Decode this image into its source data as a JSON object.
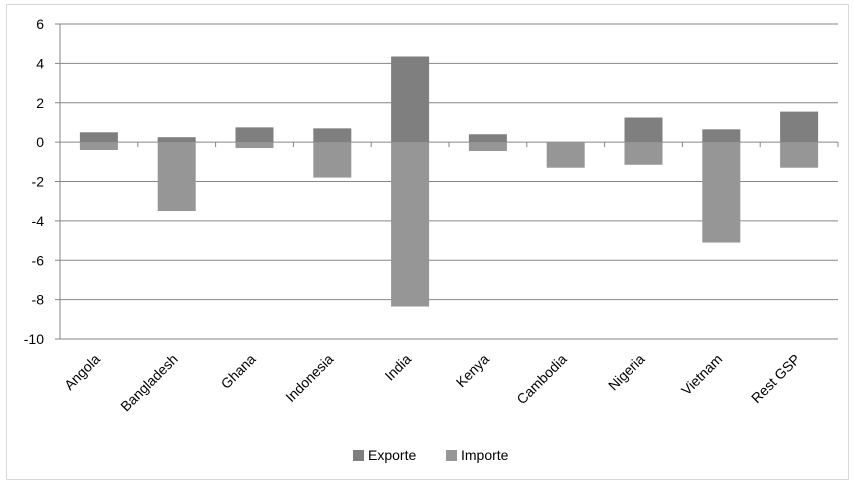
{
  "chart_data": {
    "type": "bar",
    "stacked": true,
    "categories": [
      "Angola",
      "Bangladesh",
      "Ghana",
      "Indonesia",
      "India",
      "Kenya",
      "Cambodia",
      "Nigeria",
      "Vietnam",
      "Rest GSP"
    ],
    "series": [
      {
        "name": "Exporte",
        "color": "#7f7f7f",
        "values": [
          0.5,
          0.25,
          0.75,
          0.7,
          4.35,
          0.4,
          0.0,
          1.25,
          0.65,
          1.55
        ]
      },
      {
        "name": "Importe",
        "color": "#969696",
        "values": [
          -0.4,
          -3.5,
          -0.3,
          -1.8,
          -8.35,
          -0.45,
          -1.3,
          -1.15,
          -5.1,
          -1.3
        ]
      }
    ],
    "ylim": [
      -10,
      6
    ],
    "yticks": [
      6,
      4,
      2,
      0,
      -2,
      -4,
      -6,
      -8,
      -10
    ],
    "ytick_labels": [
      "6",
      "4",
      "2",
      "0",
      "-2",
      "-4",
      "-6",
      "-8",
      "-10"
    ],
    "grid": true,
    "legend_position": "bottom"
  }
}
